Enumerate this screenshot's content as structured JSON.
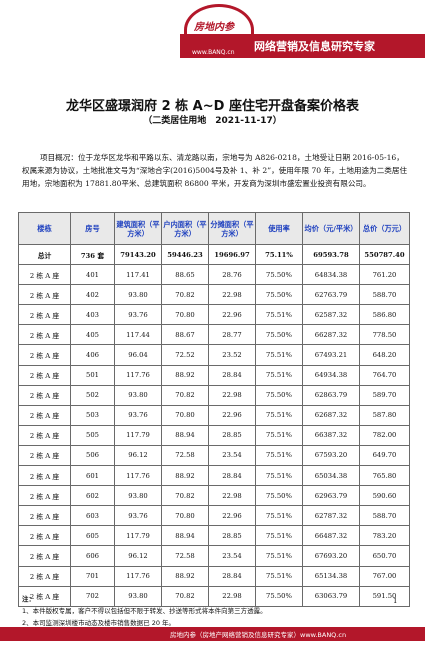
{
  "brand": {
    "logo_name": "房地内参",
    "logo_url": "www.BANQ.cn",
    "slogan": "网络营销及信息研究专家",
    "colors": {
      "accent": "#b3172a",
      "header_text": "#1d3fbf"
    }
  },
  "document": {
    "title": "龙华区盛璟润府 2 栋 A~D 座住宅开盘备案价格表",
    "subtitle": "（二类居住用地　2021-11-17）",
    "overview": "项目概况：位于龙华区龙华和平路以东、清龙路以南，宗地号为 A826-0218，土地受让日期 2016-05-16，权属来源为协议，土地批准文号为“深地合字(2016)5004号及补 1、补 2”，使用年限 70 年，土地用途为二类居住用地，宗地面积为 17881.80平米、总建筑面积 86800 平米，开发商为深圳市盛宏置业投资有限公司。"
  },
  "table": {
    "headers": [
      "楼栋",
      "房号",
      "建筑面积（平方米）",
      "户内面积（平方米）",
      "分摊面积（平方米）",
      "使用率",
      "均价（元/平米）",
      "总价（万元）"
    ],
    "total": [
      "总计",
      "736 套",
      "79143.20",
      "59446.23",
      "19696.97",
      "75.11%",
      "69593.78",
      "550787.40"
    ],
    "rows": [
      [
        "2 栋 A 座",
        "401",
        "117.41",
        "88.65",
        "28.76",
        "75.50%",
        "64834.38",
        "761.20"
      ],
      [
        "2 栋 A 座",
        "402",
        "93.80",
        "70.82",
        "22.98",
        "75.50%",
        "62763.79",
        "588.70"
      ],
      [
        "2 栋 A 座",
        "403",
        "93.76",
        "70.80",
        "22.96",
        "75.51%",
        "62587.32",
        "586.80"
      ],
      [
        "2 栋 A 座",
        "405",
        "117.44",
        "88.67",
        "28.77",
        "75.50%",
        "66287.32",
        "778.50"
      ],
      [
        "2 栋 A 座",
        "406",
        "96.04",
        "72.52",
        "23.52",
        "75.51%",
        "67493.21",
        "648.20"
      ],
      [
        "2 栋 A 座",
        "501",
        "117.76",
        "88.92",
        "28.84",
        "75.51%",
        "64934.38",
        "764.70"
      ],
      [
        "2 栋 A 座",
        "502",
        "93.80",
        "70.82",
        "22.98",
        "75.50%",
        "62863.79",
        "589.70"
      ],
      [
        "2 栋 A 座",
        "503",
        "93.76",
        "70.80",
        "22.96",
        "75.51%",
        "62687.32",
        "587.80"
      ],
      [
        "2 栋 A 座",
        "505",
        "117.79",
        "88.94",
        "28.85",
        "75.51%",
        "66387.32",
        "782.00"
      ],
      [
        "2 栋 A 座",
        "506",
        "96.12",
        "72.58",
        "23.54",
        "75.51%",
        "67593.20",
        "649.70"
      ],
      [
        "2 栋 A 座",
        "601",
        "117.76",
        "88.92",
        "28.84",
        "75.51%",
        "65034.38",
        "765.80"
      ],
      [
        "2 栋 A 座",
        "602",
        "93.80",
        "70.82",
        "22.98",
        "75.50%",
        "62963.79",
        "590.60"
      ],
      [
        "2 栋 A 座",
        "603",
        "93.76",
        "70.80",
        "22.96",
        "75.51%",
        "62787.32",
        "588.70"
      ],
      [
        "2 栋 A 座",
        "605",
        "117.79",
        "88.94",
        "28.85",
        "75.51%",
        "66487.32",
        "783.20"
      ],
      [
        "2 栋 A 座",
        "606",
        "96.12",
        "72.58",
        "23.54",
        "75.51%",
        "67693.20",
        "650.70"
      ],
      [
        "2 栋 A 座",
        "701",
        "117.76",
        "88.92",
        "28.84",
        "75.51%",
        "65134.38",
        "767.00"
      ],
      [
        "2 栋 A 座",
        "702",
        "93.80",
        "70.82",
        "22.98",
        "75.50%",
        "63063.79",
        "591.50"
      ]
    ]
  },
  "notes": {
    "label": "注：",
    "items": [
      "1、本件版权专属，客户不得以包括但不限于转发、抄送等形式将本件向第三方透露。",
      "2、本司监测深圳楼市动态及楼市销售数据已 20 年。"
    ]
  },
  "page_number": "1",
  "footer": "房地内参（房地产网络营销及信息研究专家）www.BANQ.cn"
}
